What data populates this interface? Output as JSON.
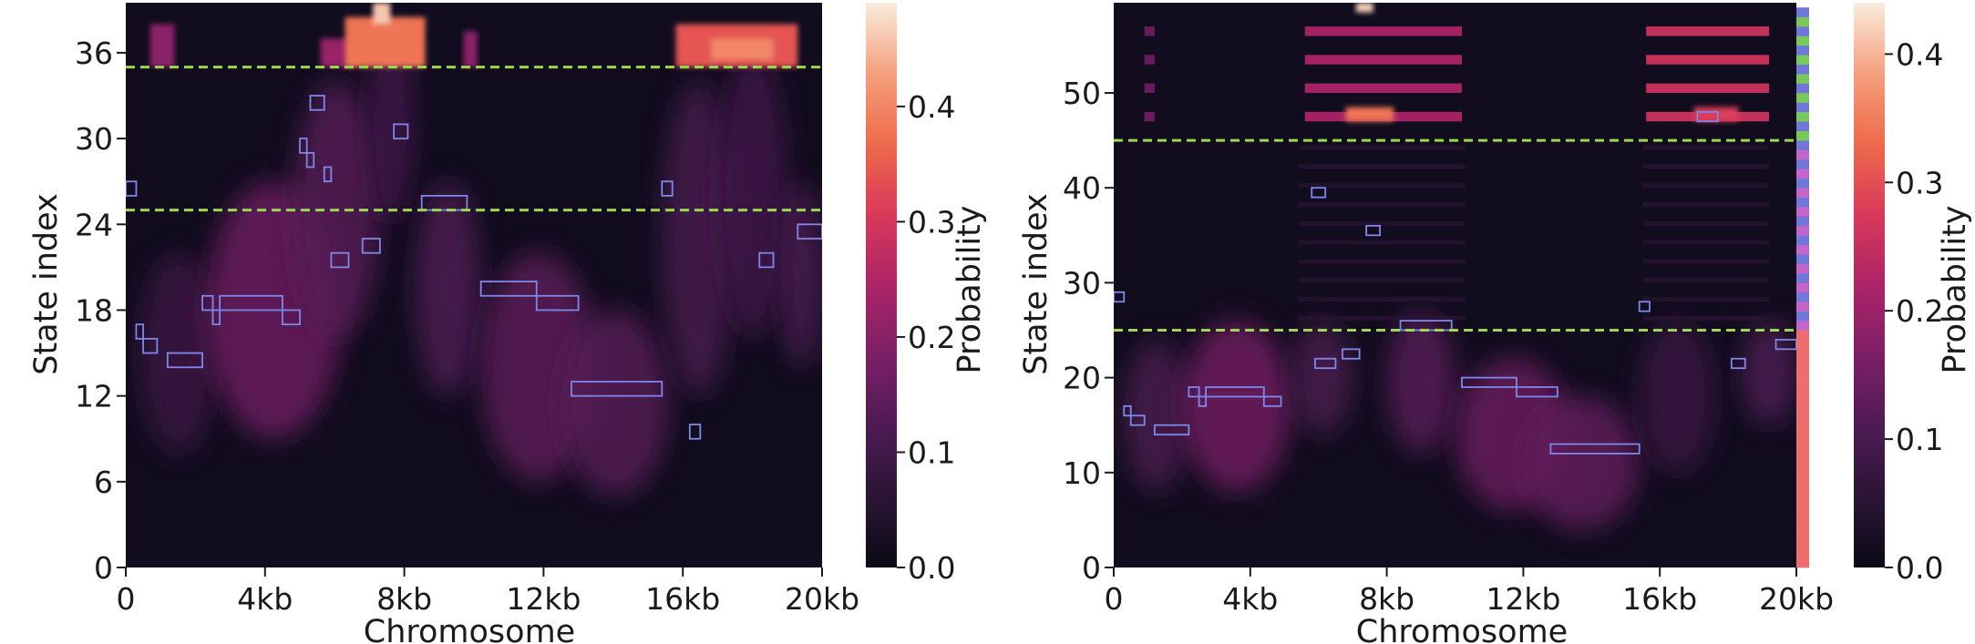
{
  "colors": {
    "background": "#110d1e",
    "threshold_line": "#9bd84f",
    "segment_outline": "#7f87e8",
    "colormap": [
      "#0b0b16",
      "#2b1535",
      "#4e1b53",
      "#7c1f66",
      "#ad2468",
      "#d9395a",
      "#ed6a4b",
      "#f4a07d",
      "#faebdd"
    ]
  },
  "chart_data": [
    {
      "type": "heatmap",
      "title": "",
      "xlabel": "Chromosome",
      "ylabel": "State index",
      "x_ticks": [
        "0",
        "4kb",
        "8kb",
        "12kb",
        "16kb",
        "20kb"
      ],
      "x_tick_values": [
        0,
        4000,
        8000,
        12000,
        16000,
        20000
      ],
      "y_ticks": [
        "0",
        "6",
        "12",
        "18",
        "24",
        "30",
        "36"
      ],
      "y_tick_values": [
        0,
        6,
        12,
        18,
        24,
        30,
        36
      ],
      "xlim": [
        0,
        20000
      ],
      "ylim": [
        0,
        39.5
      ],
      "colorbar": {
        "label": "Probability",
        "ticks": [
          "0.0",
          "0.1",
          "0.2",
          "0.3",
          "0.4"
        ],
        "tick_values": [
          0.0,
          0.1,
          0.2,
          0.3,
          0.4
        ],
        "range": [
          0,
          0.49
        ]
      },
      "threshold_lines": [
        25,
        35
      ],
      "side_strip": false,
      "diffuse_blobs": [
        {
          "x0": 400,
          "x1": 2600,
          "y0": 8,
          "y1": 22,
          "peak": 0.09
        },
        {
          "x0": 2300,
          "x1": 6200,
          "y0": 9,
          "y1": 27,
          "peak": 0.16
        },
        {
          "x0": 4800,
          "x1": 7300,
          "y0": 16,
          "y1": 34,
          "peak": 0.13
        },
        {
          "x0": 6900,
          "x1": 8300,
          "y0": 24,
          "y1": 38,
          "peak": 0.1
        },
        {
          "x0": 8300,
          "x1": 10200,
          "y0": 12,
          "y1": 27,
          "peak": 0.12
        },
        {
          "x0": 10200,
          "x1": 13500,
          "y0": 6,
          "y1": 22,
          "peak": 0.14
        },
        {
          "x0": 12500,
          "x1": 15600,
          "y0": 5,
          "y1": 18,
          "peak": 0.13
        },
        {
          "x0": 15400,
          "x1": 17500,
          "y0": 12,
          "y1": 34,
          "peak": 0.11
        },
        {
          "x0": 17000,
          "x1": 19000,
          "y0": 16,
          "y1": 36,
          "peak": 0.1
        },
        {
          "x0": 18800,
          "x1": 20000,
          "y0": 14,
          "y1": 27,
          "peak": 0.12
        }
      ],
      "hot_spots": [
        {
          "x0": 700,
          "x1": 1400,
          "y0": 35,
          "y1": 38,
          "value": 0.2
        },
        {
          "x0": 5600,
          "x1": 6600,
          "y0": 35,
          "y1": 37,
          "value": 0.22
        },
        {
          "x0": 6300,
          "x1": 8600,
          "y0": 35,
          "y1": 38.5,
          "value": 0.38
        },
        {
          "x0": 7100,
          "x1": 7600,
          "y0": 38,
          "y1": 39.5,
          "value": 0.46
        },
        {
          "x0": 9700,
          "x1": 10100,
          "y0": 35,
          "y1": 37.5,
          "value": 0.2
        },
        {
          "x0": 15800,
          "x1": 19300,
          "y0": 35,
          "y1": 38,
          "value": 0.34
        },
        {
          "x0": 16800,
          "x1": 18600,
          "y0": 35.5,
          "y1": 37,
          "value": 0.4
        }
      ],
      "segments": [
        {
          "x0": 0,
          "x1": 300,
          "y0": 26,
          "y1": 27
        },
        {
          "x0": 300,
          "x1": 500,
          "y0": 16,
          "y1": 17
        },
        {
          "x0": 500,
          "x1": 900,
          "y0": 15,
          "y1": 16
        },
        {
          "x0": 1200,
          "x1": 2200,
          "y0": 14,
          "y1": 15
        },
        {
          "x0": 2200,
          "x1": 2500,
          "y0": 18,
          "y1": 19
        },
        {
          "x0": 2500,
          "x1": 2700,
          "y0": 17,
          "y1": 18
        },
        {
          "x0": 2700,
          "x1": 4500,
          "y0": 18,
          "y1": 19
        },
        {
          "x0": 4500,
          "x1": 5000,
          "y0": 17,
          "y1": 18
        },
        {
          "x0": 5000,
          "x1": 5200,
          "y0": 29,
          "y1": 30
        },
        {
          "x0": 5200,
          "x1": 5400,
          "y0": 28,
          "y1": 29
        },
        {
          "x0": 5300,
          "x1": 5700,
          "y0": 32,
          "y1": 33
        },
        {
          "x0": 5700,
          "x1": 5900,
          "y0": 27,
          "y1": 28
        },
        {
          "x0": 5900,
          "x1": 6400,
          "y0": 21,
          "y1": 22
        },
        {
          "x0": 6800,
          "x1": 7300,
          "y0": 22,
          "y1": 23
        },
        {
          "x0": 7700,
          "x1": 8100,
          "y0": 30,
          "y1": 31
        },
        {
          "x0": 8500,
          "x1": 9800,
          "y0": 25,
          "y1": 26
        },
        {
          "x0": 10200,
          "x1": 11800,
          "y0": 19,
          "y1": 20
        },
        {
          "x0": 11800,
          "x1": 13000,
          "y0": 18,
          "y1": 19
        },
        {
          "x0": 12800,
          "x1": 15400,
          "y0": 12,
          "y1": 13
        },
        {
          "x0": 15400,
          "x1": 15700,
          "y0": 26,
          "y1": 27
        },
        {
          "x0": 16200,
          "x1": 16500,
          "y0": 9,
          "y1": 10
        },
        {
          "x0": 18200,
          "x1": 18600,
          "y0": 21,
          "y1": 22
        },
        {
          "x0": 19300,
          "x1": 20000,
          "y0": 23,
          "y1": 24
        }
      ]
    },
    {
      "type": "heatmap",
      "title": "",
      "xlabel": "Chromosome",
      "ylabel": "State index",
      "x_ticks": [
        "0",
        "4kb",
        "8kb",
        "12kb",
        "16kb",
        "20kb"
      ],
      "x_tick_values": [
        0,
        4000,
        8000,
        12000,
        16000,
        20000
      ],
      "y_ticks": [
        "0",
        "10",
        "20",
        "30",
        "40",
        "50"
      ],
      "y_tick_values": [
        0,
        10,
        20,
        30,
        40,
        50
      ],
      "xlim": [
        0,
        20000
      ],
      "ylim": [
        0,
        59.5
      ],
      "colorbar": {
        "label": "Probability",
        "ticks": [
          "0.0",
          "0.1",
          "0.2",
          "0.3",
          "0.4"
        ],
        "tick_values": [
          0.0,
          0.1,
          0.2,
          0.3,
          0.4
        ],
        "range": [
          0,
          0.44
        ]
      },
      "threshold_lines": [
        25,
        45
      ],
      "side_strip": true,
      "strip_colors": {
        "low": "#ee6d6d",
        "band_a": "#6f78d8",
        "band_b": "#c466c9",
        "high": "#79c95a"
      },
      "diffuse_blobs": [
        {
          "x0": 300,
          "x1": 2200,
          "y0": 8,
          "y1": 24,
          "peak": 0.1
        },
        {
          "x0": 2000,
          "x1": 5200,
          "y0": 8,
          "y1": 26,
          "peak": 0.15
        },
        {
          "x0": 5200,
          "x1": 7000,
          "y0": 14,
          "y1": 26,
          "peak": 0.1
        },
        {
          "x0": 8000,
          "x1": 10000,
          "y0": 12,
          "y1": 27,
          "peak": 0.12
        },
        {
          "x0": 10000,
          "x1": 13400,
          "y0": 6,
          "y1": 22,
          "peak": 0.14
        },
        {
          "x0": 12000,
          "x1": 15400,
          "y0": 4,
          "y1": 18,
          "peak": 0.13
        },
        {
          "x0": 15400,
          "x1": 17600,
          "y0": 10,
          "y1": 26,
          "peak": 0.08
        },
        {
          "x0": 18400,
          "x1": 20000,
          "y0": 15,
          "y1": 26,
          "peak": 0.11
        }
      ],
      "banded_regions": [
        {
          "x0": 5400,
          "x1": 10300,
          "y0": 25,
          "y1": 45,
          "peak": 0.05
        },
        {
          "x0": 15500,
          "x1": 19200,
          "y0": 25,
          "y1": 45,
          "peak": 0.05
        }
      ],
      "hot_bands": {
        "rows": [
          47.5,
          50.5,
          53.5,
          56.5
        ],
        "ranges": [
          {
            "x0": 900,
            "x1": 1200,
            "value": 0.15
          },
          {
            "x0": 5600,
            "x1": 10200,
            "value": 0.22
          },
          {
            "x0": 15600,
            "x1": 19200,
            "value": 0.26
          }
        ]
      },
      "hot_spots": [
        {
          "x0": 6800,
          "x1": 8200,
          "y0": 47,
          "y1": 48.5,
          "value": 0.34
        },
        {
          "x0": 7100,
          "x1": 7600,
          "y0": 58.5,
          "y1": 59.5,
          "value": 0.42
        },
        {
          "x0": 17000,
          "x1": 18300,
          "y0": 47,
          "y1": 48.5,
          "value": 0.28
        }
      ],
      "segments": [
        {
          "x0": 0,
          "x1": 300,
          "y0": 28,
          "y1": 29
        },
        {
          "x0": 300,
          "x1": 500,
          "y0": 16,
          "y1": 17
        },
        {
          "x0": 500,
          "x1": 900,
          "y0": 15,
          "y1": 16
        },
        {
          "x0": 1200,
          "x1": 2200,
          "y0": 14,
          "y1": 15
        },
        {
          "x0": 2200,
          "x1": 2500,
          "y0": 18,
          "y1": 19
        },
        {
          "x0": 2500,
          "x1": 2700,
          "y0": 17,
          "y1": 18
        },
        {
          "x0": 2700,
          "x1": 4400,
          "y0": 18,
          "y1": 19
        },
        {
          "x0": 4400,
          "x1": 4900,
          "y0": 17,
          "y1": 18
        },
        {
          "x0": 5800,
          "x1": 6200,
          "y0": 39,
          "y1": 40
        },
        {
          "x0": 5900,
          "x1": 6500,
          "y0": 21,
          "y1": 22
        },
        {
          "x0": 6700,
          "x1": 7200,
          "y0": 22,
          "y1": 23
        },
        {
          "x0": 7400,
          "x1": 7800,
          "y0": 35,
          "y1": 36
        },
        {
          "x0": 8400,
          "x1": 9900,
          "y0": 25,
          "y1": 26
        },
        {
          "x0": 10200,
          "x1": 11800,
          "y0": 19,
          "y1": 20
        },
        {
          "x0": 11800,
          "x1": 13000,
          "y0": 18,
          "y1": 19
        },
        {
          "x0": 12800,
          "x1": 15400,
          "y0": 12,
          "y1": 13
        },
        {
          "x0": 15400,
          "x1": 15700,
          "y0": 27,
          "y1": 28
        },
        {
          "x0": 17100,
          "x1": 17700,
          "y0": 47,
          "y1": 48
        },
        {
          "x0": 18100,
          "x1": 18500,
          "y0": 21,
          "y1": 22
        },
        {
          "x0": 19400,
          "x1": 20000,
          "y0": 23,
          "y1": 24
        }
      ]
    }
  ]
}
